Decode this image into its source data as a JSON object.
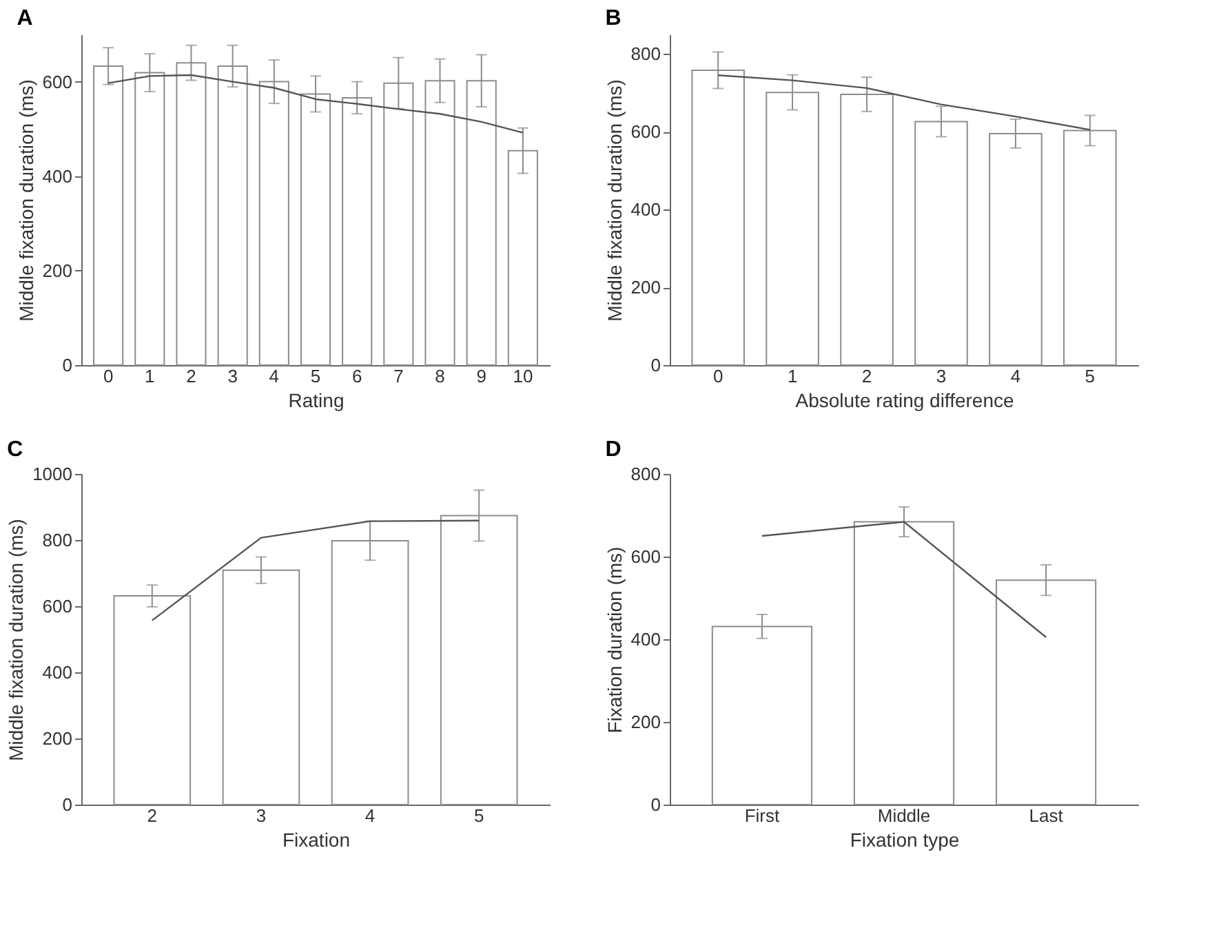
{
  "chart_data": [
    {
      "type": "bar",
      "title": "A",
      "xlabel": "Rating",
      "ylabel": "Middle fixation duration (ms)",
      "categories": [
        "0",
        "1",
        "2",
        "3",
        "4",
        "5",
        "6",
        "7",
        "8",
        "9",
        "10"
      ],
      "ylim": [
        0,
        700
      ],
      "yticks": [
        0,
        200,
        400,
        600
      ],
      "grid": false,
      "series": [
        {
          "color": "#8c8c8c",
          "values": [
            633,
            619,
            640,
            633,
            600,
            574,
            566,
            597,
            602,
            602,
            454
          ],
          "errors": [
            39,
            40,
            37,
            44,
            46,
            38,
            34,
            54,
            46,
            55,
            48
          ]
        },
        {
          "type": "line",
          "color": "#555555",
          "values": [
            597,
            612,
            614,
            600,
            587,
            563,
            553,
            542,
            532,
            515,
            492
          ]
        }
      ]
    },
    {
      "type": "bar",
      "title": "B",
      "xlabel": "Absolute rating difference",
      "ylabel": "Middle fixation duration (ms)",
      "categories": [
        "0",
        "1",
        "2",
        "3",
        "4",
        "5"
      ],
      "ylim": [
        0,
        850
      ],
      "yticks": [
        0,
        200,
        400,
        600,
        800
      ],
      "grid": false,
      "series": [
        {
          "color": "#8c8c8c",
          "values": [
            758,
            701,
            696,
            626,
            595,
            603
          ],
          "errors": [
            47,
            45,
            44,
            39,
            37,
            39
          ]
        },
        {
          "type": "line",
          "color": "#555555",
          "values": [
            745,
            732,
            712,
            670,
            639,
            605
          ]
        }
      ]
    },
    {
      "type": "bar",
      "title": "C",
      "xlabel": "Fixation",
      "ylabel": "Middle fixation duration (ms)",
      "categories": [
        "2",
        "3",
        "4",
        "5"
      ],
      "ylim": [
        0,
        1000
      ],
      "yticks": [
        0,
        200,
        400,
        600,
        800,
        1000
      ],
      "grid": false,
      "series": [
        {
          "color": "#8c8c8c",
          "values": [
            631,
            709,
            798,
            874
          ],
          "errors": [
            33,
            40,
            59,
            77
          ]
        },
        {
          "type": "line",
          "color": "#555555",
          "values": [
            557,
            807,
            857,
            859
          ]
        }
      ]
    },
    {
      "type": "bar",
      "title": "D",
      "xlabel": "Fixation type",
      "ylabel": "Fixation duration (ms)",
      "categories": [
        "First",
        "Middle",
        "Last"
      ],
      "ylim": [
        0,
        800
      ],
      "yticks": [
        0,
        200,
        400,
        600,
        800
      ],
      "grid": false,
      "series": [
        {
          "color": "#8c8c8c",
          "values": [
            431,
            684,
            543
          ],
          "errors": [
            29,
            36,
            37
          ]
        },
        {
          "type": "line",
          "color": "#555555",
          "values": [
            650,
            684,
            405
          ]
        }
      ]
    }
  ]
}
